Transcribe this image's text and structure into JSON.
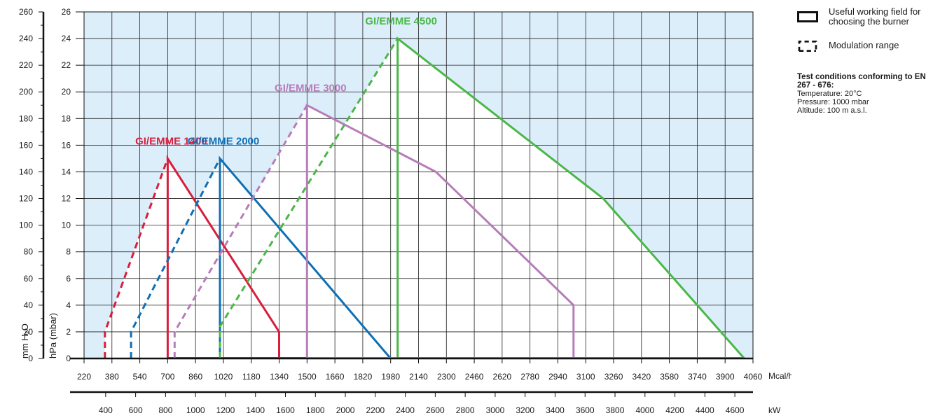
{
  "chart_data": {
    "type": "line",
    "x_unit": "Mcal/h",
    "x_unit_secondary": "kW",
    "y_label_mmH2O": "mm H₂O",
    "y_label_mbar": "hPa (mbar)",
    "xlim": [
      220,
      4060
    ],
    "ylim_mbar": [
      0,
      26
    ],
    "x_ticks": [
      220,
      380,
      540,
      700,
      860,
      1020,
      1180,
      1340,
      1500,
      1660,
      1820,
      1980,
      2140,
      2300,
      2460,
      2620,
      2780,
      2940,
      3100,
      3260,
      3420,
      3580,
      3740,
      3900,
      4060
    ],
    "kw_ticks": [
      400,
      600,
      800,
      1000,
      1200,
      1400,
      1600,
      1800,
      2000,
      2200,
      2400,
      2600,
      2800,
      3000,
      3200,
      3400,
      3600,
      3800,
      4000,
      4200,
      4400,
      4600
    ],
    "y_ticks_mbar": [
      0,
      2,
      4,
      6,
      8,
      10,
      12,
      14,
      16,
      18,
      20,
      22,
      24,
      26
    ],
    "y_ticks_mm": [
      0,
      20,
      40,
      60,
      80,
      100,
      120,
      140,
      160,
      180,
      200,
      220,
      240,
      260
    ],
    "series": [
      {
        "name": "GI/EMME 1400",
        "color": "#d81e3c",
        "working_field": [
          [
            700,
            0
          ],
          [
            700,
            15
          ],
          [
            1340,
            2
          ],
          [
            1340,
            0
          ]
        ],
        "modulation": [
          [
            340,
            0
          ],
          [
            340,
            2
          ],
          [
            700,
            15
          ]
        ]
      },
      {
        "name": "GI/EMME 2000",
        "color": "#0f6fb4",
        "working_field": [
          [
            1000,
            0
          ],
          [
            1000,
            15
          ],
          [
            1980,
            0
          ]
        ],
        "modulation": [
          [
            490,
            0
          ],
          [
            490,
            2
          ],
          [
            1000,
            15
          ]
        ]
      },
      {
        "name": "GI/EMME 3000",
        "color": "#b77db9",
        "working_field": [
          [
            1500,
            0
          ],
          [
            1500,
            19
          ],
          [
            2240,
            14
          ],
          [
            3030,
            4
          ],
          [
            3030,
            0
          ]
        ],
        "modulation": [
          [
            740,
            0
          ],
          [
            740,
            2
          ],
          [
            1500,
            19
          ]
        ]
      },
      {
        "name": "GI/EMME 4500",
        "color": "#49b847",
        "working_field": [
          [
            2020,
            0
          ],
          [
            2020,
            24
          ],
          [
            3200,
            12
          ],
          [
            4010,
            0
          ]
        ],
        "modulation": [
          [
            1000,
            0
          ],
          [
            1000,
            2.4
          ],
          [
            2020,
            24
          ]
        ]
      }
    ],
    "legend": {
      "working_field": "Useful working field for choosing the burner",
      "modulation": "Modulation range",
      "placement": "right"
    },
    "annotation": {
      "heading": "Test conditions conforming to EN 267 - 676:",
      "lines": [
        "Temperature: 20°C",
        "Pressure: 1000 mbar",
        "Altitude: 100 m a.s.l."
      ]
    },
    "grid": true
  }
}
